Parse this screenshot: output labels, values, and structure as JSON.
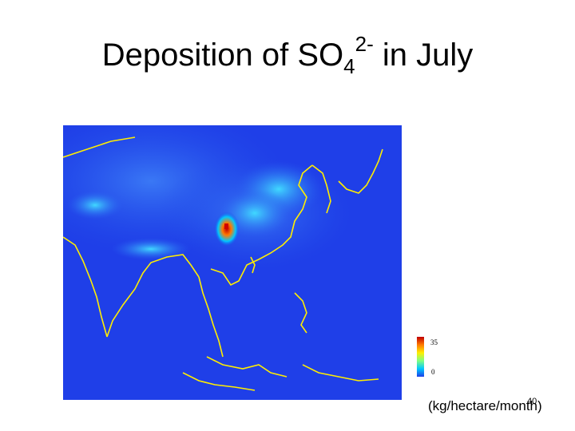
{
  "slide": {
    "title": {
      "prefix": "Deposition of SO",
      "subscript": "4",
      "superscript": "2-",
      "suffix": " in July"
    },
    "page_number": "40"
  },
  "map": {
    "colorbar": {
      "max_label": "35",
      "min_label": "0"
    },
    "units": "(kg/hectare/month)",
    "colors": {
      "background": "#1f3fe8",
      "coastline": "#ffee00",
      "high": "#c00000",
      "medium": "#ff7a00",
      "low": "#00c8ff"
    }
  }
}
